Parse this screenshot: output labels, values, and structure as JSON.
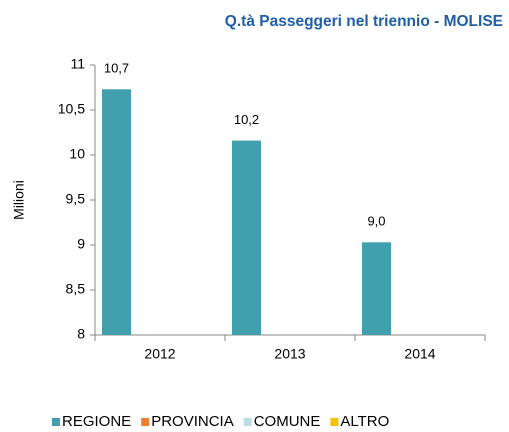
{
  "chart_data": {
    "type": "bar",
    "title": "Q.tà Passeggeri nel triennio - MOLISE",
    "y_label": "Milioni",
    "categories": [
      "2012",
      "2013",
      "2014"
    ],
    "series": [
      {
        "name": "REGIONE",
        "color": "#40a0ae",
        "values": [
          10.73,
          10.16,
          9.03
        ],
        "value_labels": [
          "10,7",
          "10,2",
          "9,0"
        ]
      },
      {
        "name": "PROVINCIA",
        "color": "#ed7d31",
        "values": [
          null,
          null,
          null
        ]
      },
      {
        "name": "COMUNE",
        "color": "#bcdce6",
        "values": [
          null,
          null,
          null
        ]
      },
      {
        "name": "ALTRO",
        "color": "#ffc000",
        "values": [
          null,
          null,
          null
        ]
      }
    ],
    "ylim": [
      8,
      11
    ],
    "yticks": [
      8,
      {
        "value": 8.5,
        "label": "8,5"
      },
      9,
      {
        "value": 9.5,
        "label": "9,5"
      },
      10,
      {
        "value": 10.5,
        "label": "10,5"
      },
      11
    ],
    "grid": false
  }
}
